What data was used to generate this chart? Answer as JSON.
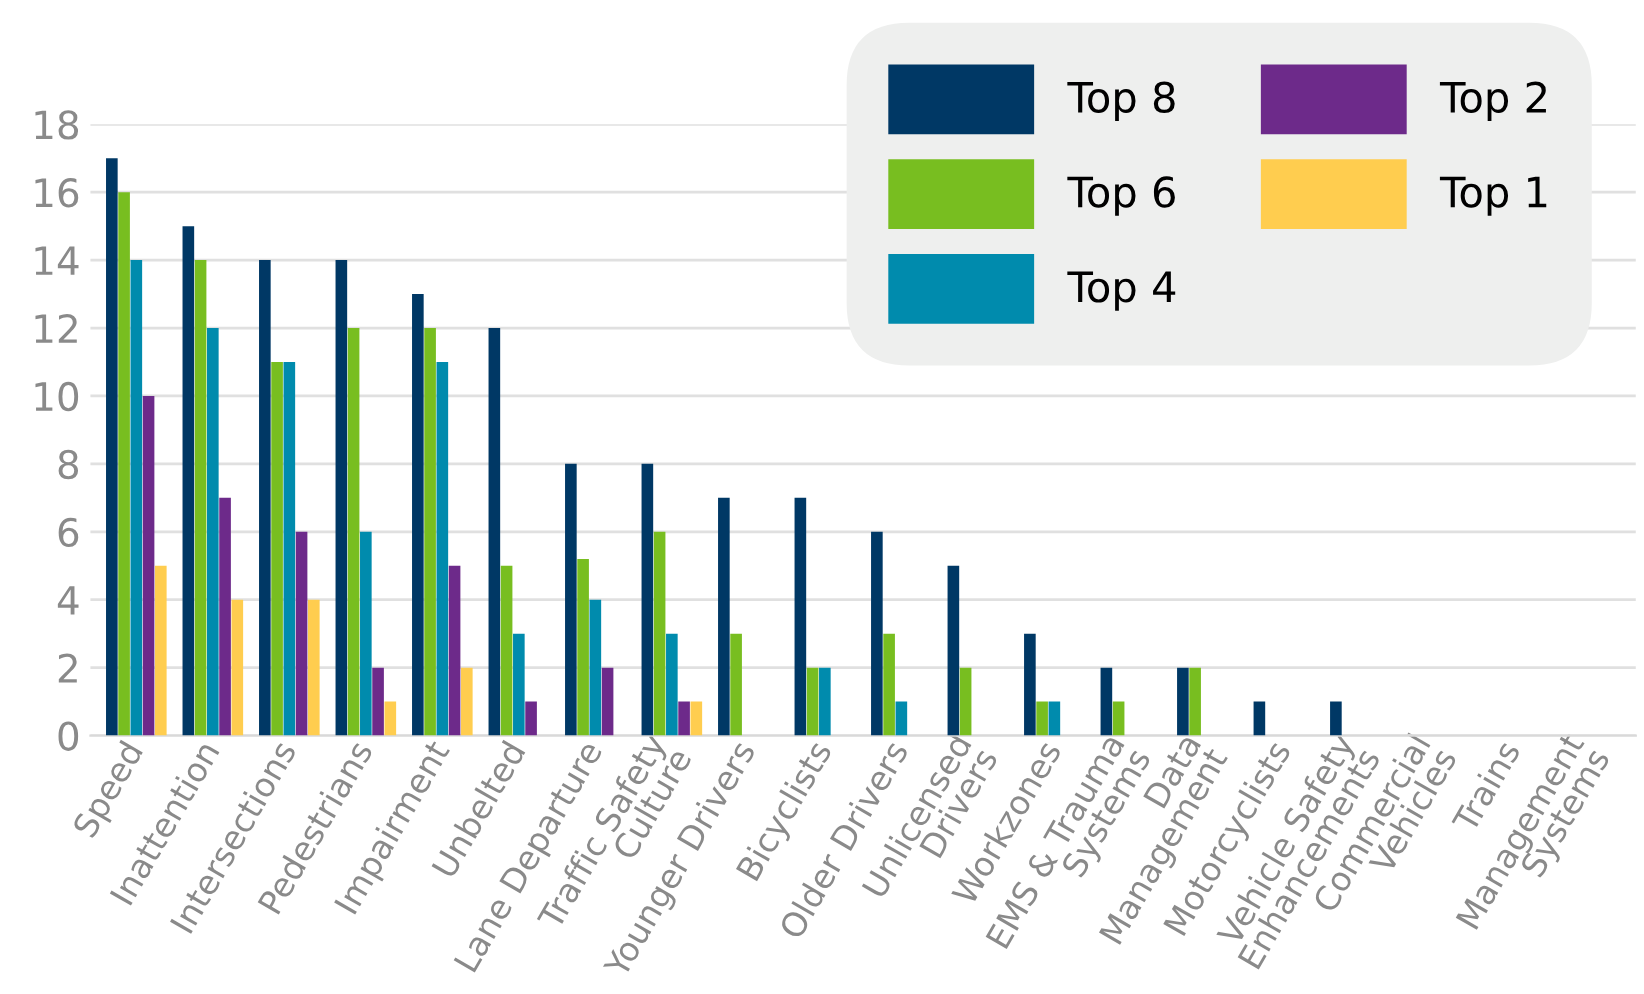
{
  "chart_data": {
    "type": "bar",
    "categories": [
      "Speed",
      "Inattention",
      "Intersections",
      "Pedestrians",
      "Impairment",
      "Unbelted",
      "Lane Departure",
      "Traffic Safety\nCulture",
      "Younger Drivers",
      "Bicyclists",
      "Older Drivers",
      "Unlicensed\nDrivers",
      "Workzones",
      "EMS & Trauma\nSystems",
      "Data\nManagement",
      "Motorcyclists",
      "Vehicle Safety\nEnhancements",
      "Commercial\nVehicles",
      "Trains",
      "Management\nSystems"
    ],
    "series": [
      {
        "name": "Top 8",
        "color": "#003865",
        "values": [
          17,
          15,
          14,
          14,
          13,
          12,
          8,
          8,
          7,
          7,
          6,
          5,
          3,
          2,
          2,
          1,
          1,
          0,
          0,
          0
        ]
      },
      {
        "name": "Top 6",
        "color": "#78be20",
        "values": [
          16,
          14,
          11,
          12,
          12,
          5,
          5.2,
          6,
          3,
          2,
          3,
          2,
          1,
          1,
          2,
          0,
          0,
          0,
          0,
          0
        ]
      },
      {
        "name": "Top 4",
        "color": "#008bad",
        "values": [
          14,
          12,
          11,
          6,
          11,
          3,
          4,
          3,
          0,
          2,
          1,
          0,
          1,
          0,
          0,
          0,
          0,
          0,
          0,
          0
        ]
      },
      {
        "name": "Top 2",
        "color": "#6d2a8a",
        "values": [
          10,
          7,
          6,
          2,
          5,
          1,
          2,
          1,
          0,
          0,
          0,
          0,
          0,
          0,
          0,
          0,
          0,
          0,
          0,
          0
        ]
      },
      {
        "name": "Top 1",
        "color": "#ffcd4f",
        "values": [
          5,
          4,
          4,
          1,
          2,
          0,
          0,
          1,
          0,
          0,
          0,
          0,
          0,
          0,
          0,
          0,
          0,
          0,
          0,
          0
        ]
      }
    ],
    "ylim": [
      0,
      18
    ],
    "yticks": [
      0,
      2,
      4,
      6,
      8,
      10,
      12,
      14,
      16,
      18
    ],
    "grid": "y",
    "legend": "top right"
  }
}
